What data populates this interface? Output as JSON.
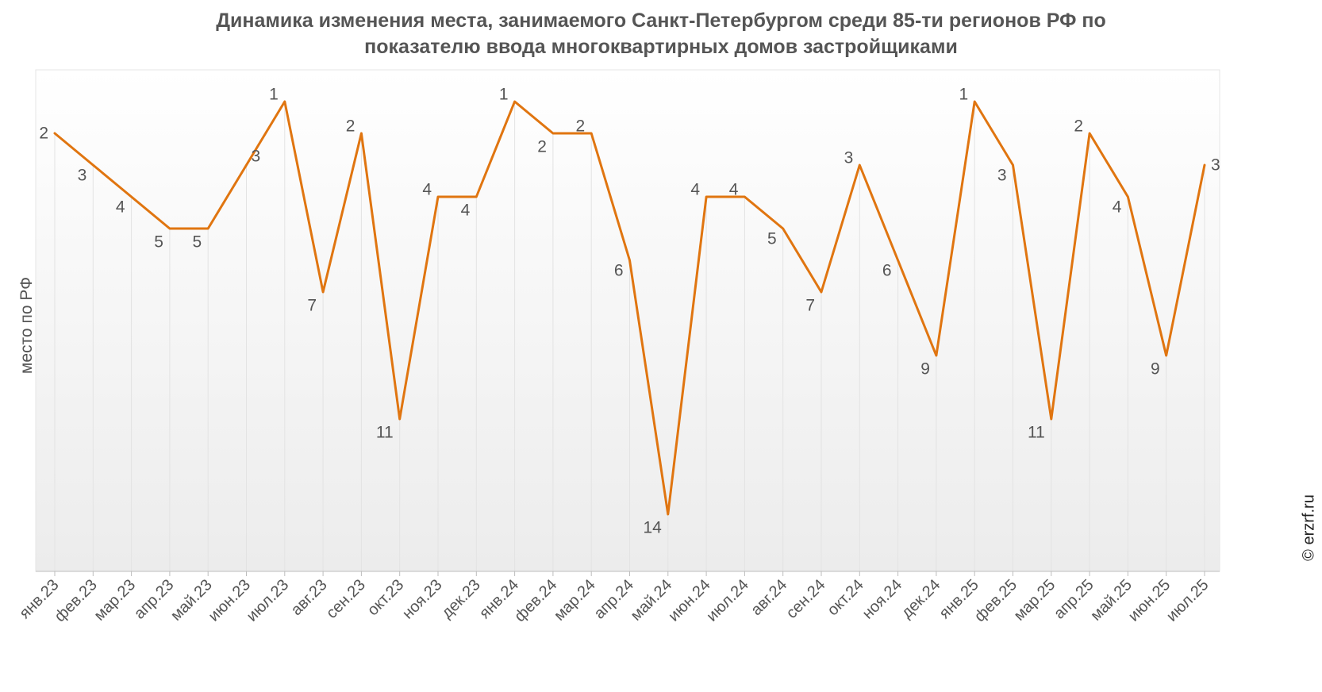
{
  "chart_data": {
    "type": "line",
    "title_lines": [
      "Динамика изменения места, занимаемого Санкт-Петербургом среди 85-ти регионов РФ по",
      "показателю ввода многоквартирных домов застройщиками"
    ],
    "xlabel": "",
    "ylabel": "место по РФ",
    "categories": [
      "янв.23",
      "фев.23",
      "мар.23",
      "апр.23",
      "май.23",
      "июн.23",
      "июл.23",
      "авг.23",
      "сен.23",
      "окт.23",
      "ноя.23",
      "дек.23",
      "янв.24",
      "фев.24",
      "мар.24",
      "апр.24",
      "май.24",
      "июн.24",
      "июл.24",
      "авг.24",
      "сен.24",
      "окт.24",
      "ноя.24",
      "дек.24",
      "янв.25",
      "фев.25",
      "мар.25",
      "апр.25",
      "май.25",
      "июн.25",
      "июл.25"
    ],
    "series": [
      {
        "name": "",
        "values": [
          2,
          3,
          4,
          5,
          5,
          3,
          1,
          7,
          2,
          11,
          4,
          4,
          1,
          2,
          2,
          6,
          14,
          4,
          4,
          5,
          7,
          3,
          6,
          9,
          1,
          3,
          11,
          2,
          4,
          9,
          3
        ],
        "data_labels": [
          "2",
          "3",
          "4",
          "5",
          "5",
          "3",
          "1",
          "7",
          "2",
          "11",
          "4",
          "4",
          "1",
          "2",
          "2",
          "6",
          "14",
          "4",
          "4",
          "5",
          "7",
          "3",
          "6",
          "9",
          "1",
          "3",
          "11",
          "2",
          "4",
          "9",
          "3"
        ]
      }
    ],
    "y_reversed": true,
    "ylim": [
      0,
      16
    ],
    "grid": "vertical",
    "legend": "none",
    "colors": {
      "line": "#E07510",
      "grid": "#e3e3e3",
      "text": "#555555"
    }
  },
  "watermark": "© erzrf.ru"
}
